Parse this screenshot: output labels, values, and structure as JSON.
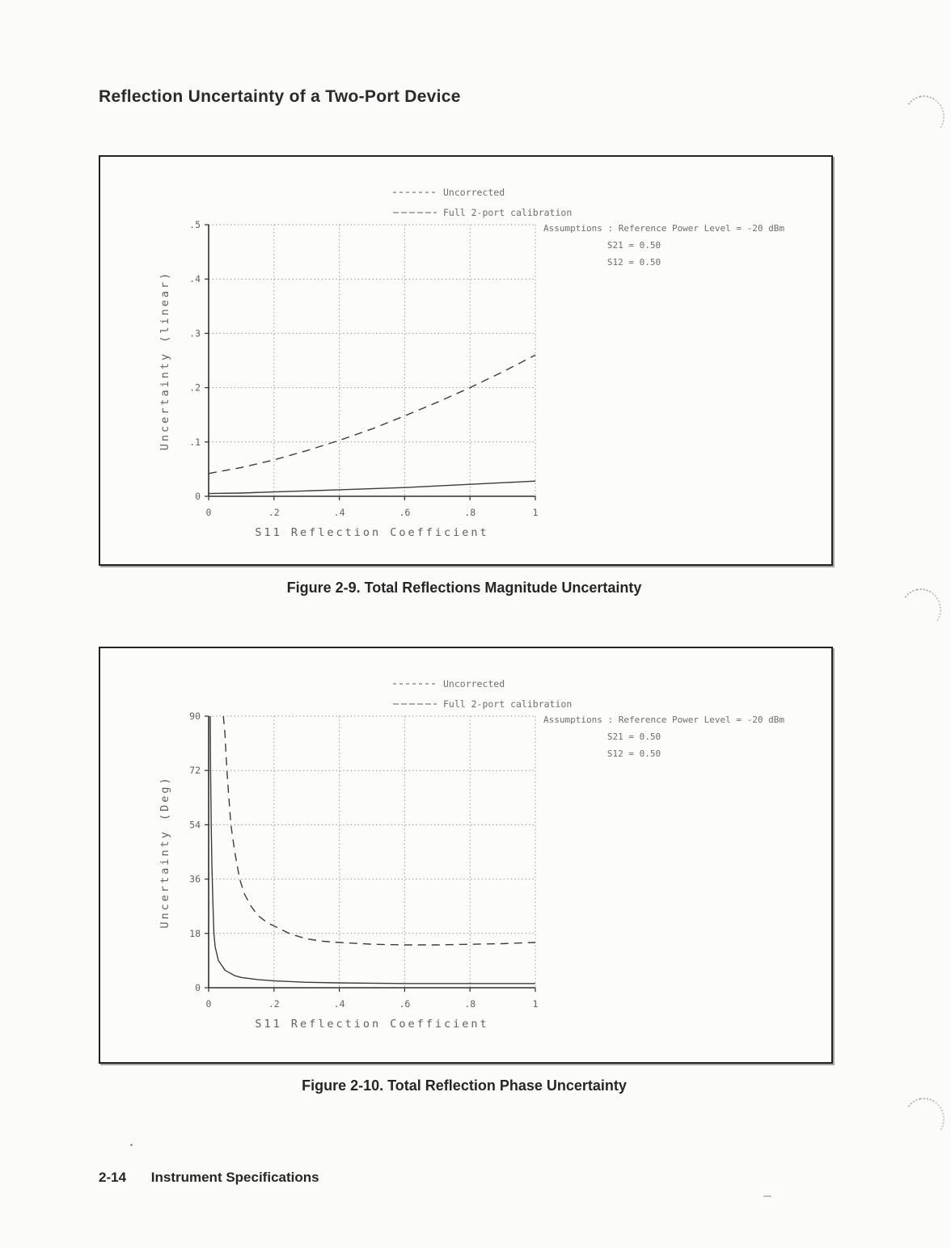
{
  "page": {
    "title": "Reflection Uncertainty of a Two-Port Device",
    "footer": {
      "page_number": "2-14",
      "section_title": "Instrument Specifications"
    }
  },
  "figures": [
    {
      "caption": "Figure 2-9. Total Reflections Magnitude Uncertainty"
    },
    {
      "caption": "Figure 2-10. Total Reflection Phase Uncertainty"
    }
  ],
  "colors": {
    "ink": "#3c3c3c",
    "axis": "#2e2e2e",
    "grid": "#9a9a9a",
    "text": "#6e6e6e"
  },
  "chart_data": [
    {
      "type": "line",
      "title": "Total Reflections Magnitude Uncertainty",
      "xlabel": "S11 Reflection Coefficient",
      "ylabel": "Uncertainty (linear)",
      "xlim": [
        0,
        1
      ],
      "ylim": [
        0,
        0.5
      ],
      "grid": true,
      "legend_position": "top",
      "x_ticks": [
        {
          "v": 0,
          "label": "0"
        },
        {
          "v": 0.2,
          "label": ".2"
        },
        {
          "v": 0.4,
          "label": ".4"
        },
        {
          "v": 0.6,
          "label": ".6"
        },
        {
          "v": 0.8,
          "label": ".8"
        },
        {
          "v": 1,
          "label": "1"
        }
      ],
      "y_ticks": [
        {
          "v": 0,
          "label": "0"
        },
        {
          "v": 0.1,
          "label": ".1"
        },
        {
          "v": 0.2,
          "label": ".2"
        },
        {
          "v": 0.3,
          "label": ".3"
        },
        {
          "v": 0.4,
          "label": ".4"
        },
        {
          "v": 0.5,
          "label": ".5"
        }
      ],
      "annotations": [
        "Assumptions : Reference Power Level = -20 dBm",
        "S21 = 0.50",
        "S12 = 0.50"
      ],
      "series": [
        {
          "name": "Uncorrected",
          "line_style": "dashed",
          "points": [
            [
              0,
              0.042
            ],
            [
              0.1,
              0.053
            ],
            [
              0.2,
              0.067
            ],
            [
              0.3,
              0.084
            ],
            [
              0.4,
              0.103
            ],
            [
              0.5,
              0.124
            ],
            [
              0.6,
              0.148
            ],
            [
              0.7,
              0.173
            ],
            [
              0.8,
              0.2
            ],
            [
              0.9,
              0.229
            ],
            [
              1,
              0.26
            ]
          ]
        },
        {
          "name": "Full 2-port calibration",
          "line_style": "solid",
          "points": [
            [
              0,
              0.005
            ],
            [
              0.1,
              0.006
            ],
            [
              0.2,
              0.008
            ],
            [
              0.3,
              0.01
            ],
            [
              0.4,
              0.012
            ],
            [
              0.5,
              0.014
            ],
            [
              0.6,
              0.016
            ],
            [
              0.7,
              0.019
            ],
            [
              0.8,
              0.022
            ],
            [
              0.9,
              0.025
            ],
            [
              1,
              0.028
            ]
          ]
        }
      ]
    },
    {
      "type": "line",
      "title": "Total Reflection Phase Uncertainty",
      "xlabel": "S11 Reflection Coefficient",
      "ylabel": "Uncertainty (Deg)",
      "xlim": [
        0,
        1
      ],
      "ylim": [
        0,
        90
      ],
      "grid": true,
      "legend_position": "top",
      "x_ticks": [
        {
          "v": 0,
          "label": "0"
        },
        {
          "v": 0.2,
          "label": ".2"
        },
        {
          "v": 0.4,
          "label": ".4"
        },
        {
          "v": 0.6,
          "label": ".6"
        },
        {
          "v": 0.8,
          "label": ".8"
        },
        {
          "v": 1,
          "label": "1"
        }
      ],
      "y_ticks": [
        {
          "v": 0,
          "label": "0"
        },
        {
          "v": 18,
          "label": "18"
        },
        {
          "v": 36,
          "label": "36"
        },
        {
          "v": 54,
          "label": "54"
        },
        {
          "v": 72,
          "label": "72"
        },
        {
          "v": 90,
          "label": "90"
        }
      ],
      "annotations": [
        "Assumptions : Reference Power Level = -20 dBm",
        "S21 = 0.50",
        "S12 = 0.50"
      ],
      "series": [
        {
          "name": "Uncorrected",
          "line_style": "dashed",
          "points": [
            [
              0.045,
              90
            ],
            [
              0.05,
              84
            ],
            [
              0.056,
              72
            ],
            [
              0.062,
              63
            ],
            [
              0.068,
              54
            ],
            [
              0.08,
              45
            ],
            [
              0.095,
              36
            ],
            [
              0.11,
              31
            ],
            [
              0.13,
              27
            ],
            [
              0.15,
              24
            ],
            [
              0.18,
              21.5
            ],
            [
              0.2,
              20.5
            ],
            [
              0.25,
              17.8
            ],
            [
              0.3,
              16.2
            ],
            [
              0.35,
              15.4
            ],
            [
              0.4,
              15
            ],
            [
              0.5,
              14.4
            ],
            [
              0.6,
              14.2
            ],
            [
              0.7,
              14.2
            ],
            [
              0.8,
              14.4
            ],
            [
              0.9,
              14.6
            ],
            [
              1,
              15
            ]
          ]
        },
        {
          "name": "Full 2-port calibration",
          "line_style": "solid",
          "points": [
            [
              0.005,
              90
            ],
            [
              0.006,
              72
            ],
            [
              0.008,
              54
            ],
            [
              0.01,
              41
            ],
            [
              0.013,
              28
            ],
            [
              0.016,
              18
            ],
            [
              0.02,
              13.5
            ],
            [
              0.03,
              9
            ],
            [
              0.05,
              5.8
            ],
            [
              0.08,
              4
            ],
            [
              0.1,
              3.4
            ],
            [
              0.15,
              2.7
            ],
            [
              0.2,
              2.3
            ],
            [
              0.3,
              1.8
            ],
            [
              0.4,
              1.6
            ],
            [
              0.5,
              1.5
            ],
            [
              0.6,
              1.4
            ],
            [
              0.8,
              1.4
            ],
            [
              1,
              1.4
            ]
          ]
        }
      ]
    }
  ]
}
